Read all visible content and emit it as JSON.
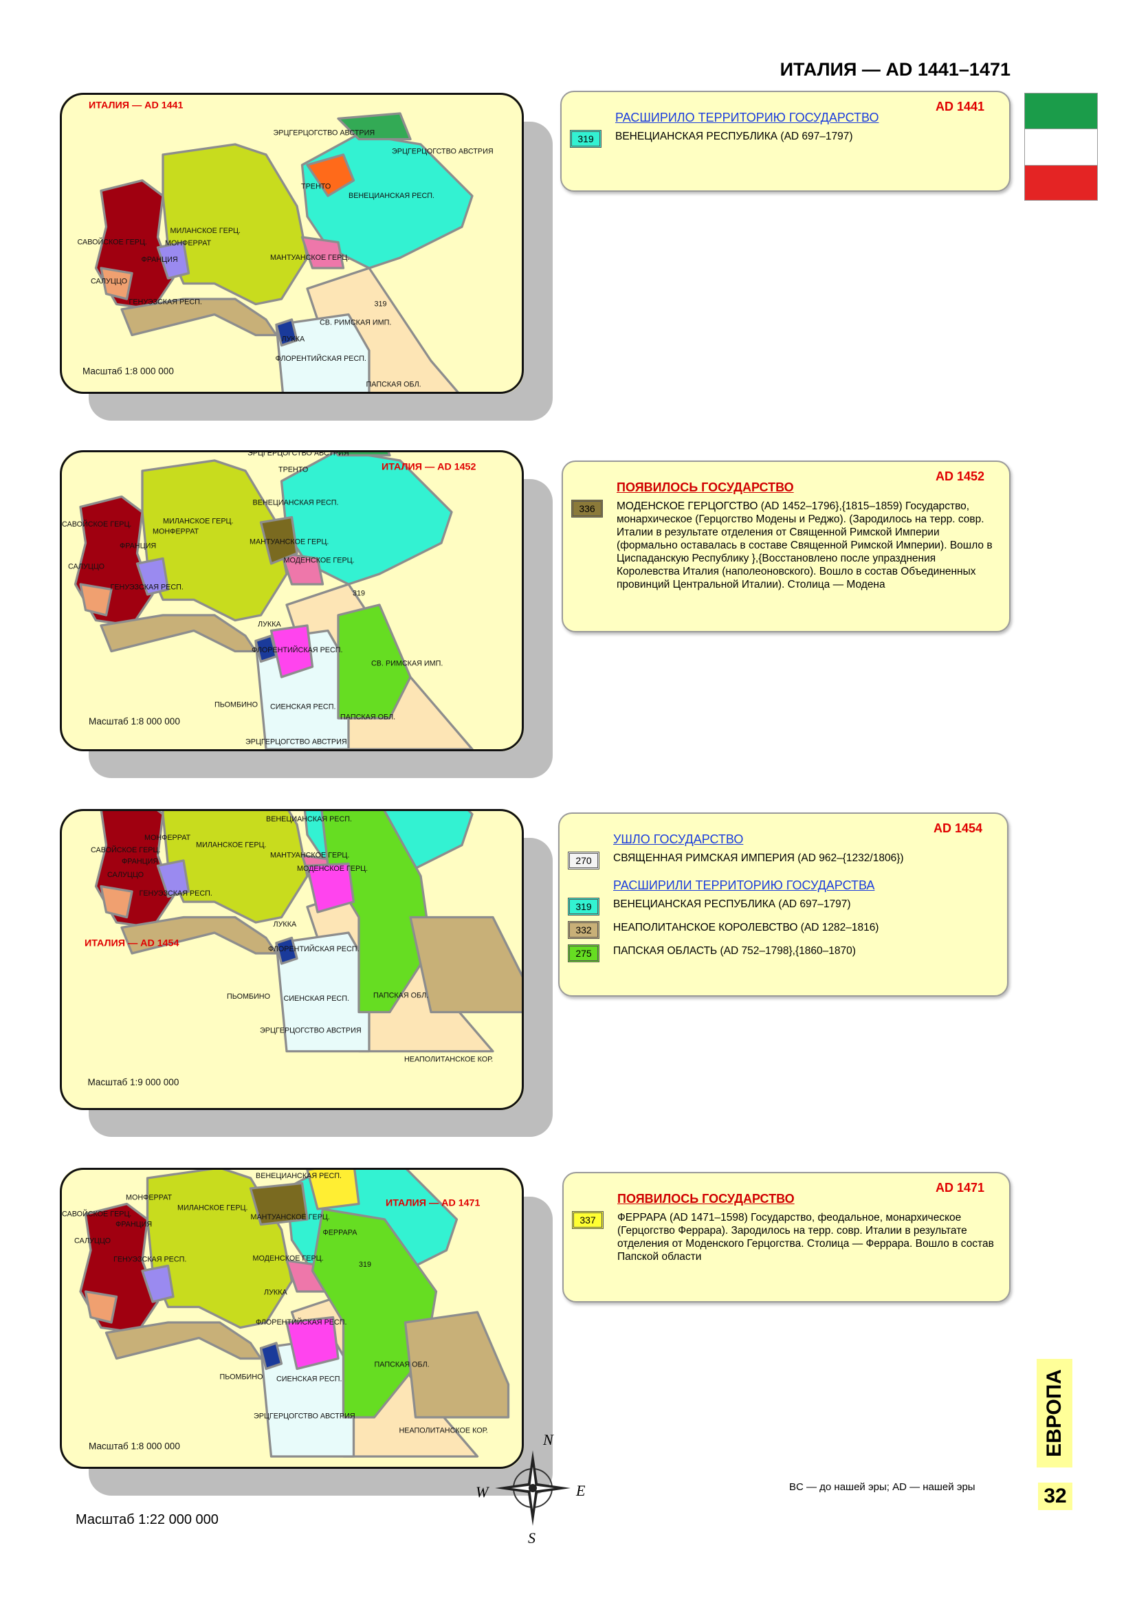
{
  "header": {
    "title": "ИТАЛИЯ — AD 1441–1471"
  },
  "maps": [
    {
      "title": "ИТАЛИЯ — AD 1441",
      "scale": "Масштаб 1:8 000 000",
      "labels": [
        "ЭРЦГЕРЦОГСТВО АВСТРИЯ",
        "ЭРЦГЕРЦОГСТВО АВСТРИЯ",
        "ТРЕНТО",
        "ВЕНЕЦИАНСКАЯ РЕСП.",
        "МИЛАНСКОЕ ГЕРЦ.",
        "САВОЙСКОЕ ГЕРЦ.",
        "МОНФЕРРАТ",
        "ФРАНЦИЯ",
        "МАНТУАНСКОЕ ГЕРЦ.",
        "САЛУЦЦО",
        "ГЕНУЭЗСКАЯ РЕСП.",
        "319",
        "ЛУККА",
        "СВ. РИМСКАЯ ИМП.",
        "ФЛОРЕНТИЙСКАЯ РЕСП.",
        "ПАПСКАЯ ОБЛ."
      ]
    },
    {
      "title": "ИТАЛИЯ — AD 1452",
      "scale": "Масштаб 1:8 000 000",
      "labels": [
        "ЭРЦГЕРЦОГСТВО АВСТРИЯ",
        "ТРЕНТО",
        "ВЕНЕЦИАНСКАЯ РЕСП.",
        "МИЛАНСКОЕ ГЕРЦ.",
        "САВОЙСКОЕ ГЕРЦ.",
        "МОНФЕРРАТ",
        "ФРАНЦИЯ",
        "МАНТУАНСКОЕ ГЕРЦ.",
        "МОДЕНСКОЕ ГЕРЦ.",
        "САЛУЦЦО",
        "ГЕНУЭЗСКАЯ РЕСП.",
        "319",
        "ЛУККА",
        "ФЛОРЕНТИЙСКАЯ РЕСП.",
        "СВ. РИМСКАЯ ИМП.",
        "ПЬОМБИНО",
        "СИЕНСКАЯ РЕСП.",
        "ПАПСКАЯ ОБЛ.",
        "ЭРЦГЕРЦОГСТВО АВСТРИЯ"
      ]
    },
    {
      "title": "ИТАЛИЯ — AD 1454",
      "scale": "Масштаб 1:9 000 000",
      "labels": [
        "ВЕНЕЦИАНСКАЯ РЕСП.",
        "МОНФЕРРАТ",
        "САВОЙСКОЕ ГЕРЦ.",
        "МИЛАНСКОЕ ГЕРЦ.",
        "МАНТУАНСКОЕ ГЕРЦ.",
        "МОДЕНСКОЕ ГЕРЦ.",
        "ФРАНЦИЯ",
        "САЛУЦЦО",
        "ГЕНУЭЗСКАЯ РЕСП.",
        "ЛУККА",
        "ФЛОРЕНТИЙСКАЯ РЕСП.",
        "ПЬОМБИНО",
        "СИЕНСКАЯ РЕСП.",
        "ПАПСКАЯ ОБЛ.",
        "ЭРЦГЕРЦОГСТВО АВСТРИЯ",
        "НЕАПОЛИТАНСКОЕ КОР."
      ]
    },
    {
      "title": "ИТАЛИЯ — AD 1471",
      "scale": "Масштаб 1:8 000 000",
      "labels": [
        "ВЕНЕЦИАНСКАЯ РЕСП.",
        "МОНФЕРРАТ",
        "САВОЙСКОЕ ГЕРЦ.",
        "МИЛАНСКОЕ ГЕРЦ.",
        "ФРАНЦИЯ",
        "МАНТУАНСКОЕ ГЕРЦ.",
        "ФЕРРАРА",
        "САЛУЦЦО",
        "ГЕНУЭЗСКАЯ РЕСП.",
        "МОДЕНСКОЕ ГЕРЦ.",
        "319",
        "ЛУККА",
        "ФЛОРЕНТИЙСКАЯ РЕСП.",
        "ПАПСКАЯ ОБЛ.",
        "ПЬОМБИНО",
        "СИЕНСКАЯ РЕСП.",
        "ЭРЦГЕРЦОГСТВО АВСТРИЯ",
        "НЕАПОЛИТАНСКОЕ КОР."
      ]
    }
  ],
  "info": [
    {
      "year": "AD 1441",
      "sections": [
        {
          "heading": "РАСШИРИЛО ТЕРРИТОРИЮ ГОСУДАРСТВО",
          "entries": [
            {
              "code": "319",
              "text": "ВЕНЕЦИАНСКАЯ РЕСПУБЛИКА  (AD 697–1797)"
            }
          ]
        }
      ]
    },
    {
      "year": "AD 1452",
      "sections": [
        {
          "heading": "ПОЯВИЛОСЬ ГОСУДАРСТВО",
          "entries": [
            {
              "code": "336",
              "text": "МОДЕНСКОЕ ГЕРЦОГСТВО  (AD 1452–1796},{1815–1859) Государство, монархическое (Герцогство Модены и Реджо). (Зародилось на терр. совр. Италии в результате отделения от Священной Римской Империи (формально оставалась в составе Священной Римской Империи). Вошло в Циспаданскую Республику },{Восстановлено после упразднения Королевства Италия (наполеоновского). Вошло в состав Объединенных провинций Центральной Италии). Столица — Модена"
            }
          ]
        }
      ]
    },
    {
      "year": "AD 1454",
      "sections": [
        {
          "heading": "УШЛО ГОСУДАРСТВО",
          "entries": [
            {
              "code": "270",
              "text": "СВЯЩЕННАЯ РИМСКАЯ ИМПЕРИЯ  (AD 962–{1232/1806})"
            }
          ]
        },
        {
          "heading": "РАСШИРИЛИ ТЕРРИТОРИЮ ГОСУДАРСТВА",
          "entries": [
            {
              "code": "319",
              "text": "ВЕНЕЦИАНСКАЯ РЕСПУБЛИКА  (AD 697–1797)"
            },
            {
              "code": "332",
              "text": "НЕАПОЛИТАНСКОЕ КОРОЛЕВСТВО (AD 1282–1816)"
            },
            {
              "code": "275",
              "text": "ПАПСКАЯ ОБЛАСТЬ  (AD 752–1798},{1860–1870)"
            }
          ]
        }
      ]
    },
    {
      "year": "AD 1471",
      "sections": [
        {
          "heading": "ПОЯВИЛОСЬ ГОСУДАРСТВО",
          "entries": [
            {
              "code": "337",
              "text": "ФЕРРАРА  (AD 1471–1598)     Государство, феодальное, монархическое (Герцогство Феррара). Зародилось на терр. совр. Италии в результате отделения от Моденского Герцогства. Столица — Феррара. Вошло в состав Папской области"
            }
          ]
        }
      ]
    }
  ],
  "footer": {
    "note": "BC — до нашей эры; AD — нашей эры",
    "region": "ЕВРОПА",
    "page": "32",
    "scale": "Масштаб 1:22 000 000",
    "compass": {
      "n": "N",
      "e": "E",
      "w": "W",
      "s": "S"
    }
  }
}
